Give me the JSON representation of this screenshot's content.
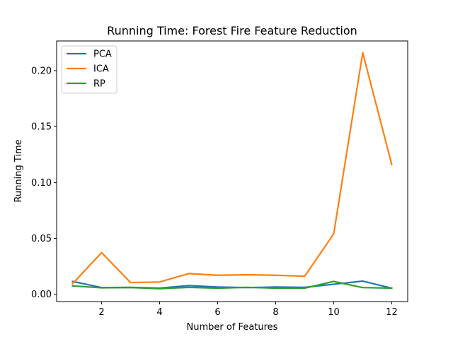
{
  "chart_data": {
    "type": "line",
    "title": "Running Time: Forest Fire Feature Reduction",
    "xlabel": "Number of Features",
    "ylabel": "Running Time",
    "x": [
      1,
      2,
      3,
      4,
      5,
      6,
      7,
      8,
      9,
      10,
      11,
      12
    ],
    "xlim": [
      0.45,
      12.55
    ],
    "ylim": [
      -0.0065,
      0.2265
    ],
    "xticks": [
      2,
      4,
      6,
      8,
      10,
      12
    ],
    "yticks": [
      0.0,
      0.05,
      0.1,
      0.15,
      0.2
    ],
    "xtick_labels": [
      "2",
      "4",
      "6",
      "8",
      "10",
      "12"
    ],
    "ytick_labels": [
      "0.00",
      "0.05",
      "0.10",
      "0.15",
      "0.20"
    ],
    "grid": false,
    "legend_position": "top-left",
    "series": [
      {
        "name": "PCA",
        "color": "#1f77b4",
        "values": [
          0.0115,
          0.006,
          0.0062,
          0.0055,
          0.0078,
          0.0065,
          0.006,
          0.0065,
          0.0062,
          0.009,
          0.0118,
          0.0055
        ]
      },
      {
        "name": "ICA",
        "color": "#ff7f0e",
        "values": [
          0.0095,
          0.0372,
          0.0105,
          0.011,
          0.0185,
          0.017,
          0.0175,
          0.017,
          0.0162,
          0.054,
          0.216,
          0.116
        ]
      },
      {
        "name": "RP",
        "color": "#2ca02c",
        "values": [
          0.0075,
          0.0058,
          0.006,
          0.005,
          0.0062,
          0.0055,
          0.0062,
          0.0055,
          0.0055,
          0.0115,
          0.006,
          0.0055
        ]
      }
    ]
  }
}
